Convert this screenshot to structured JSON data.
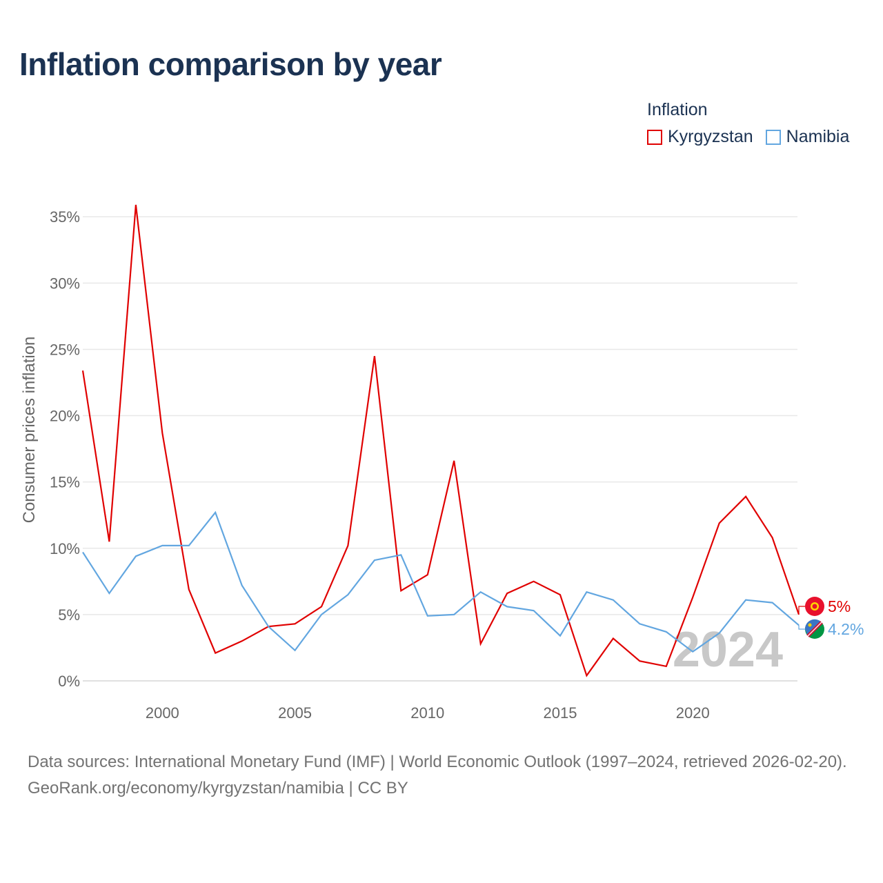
{
  "title": "Inflation comparison by year",
  "legend": {
    "title": "Inflation",
    "items": [
      {
        "name": "Kyrgyzstan",
        "color": "#e00000"
      },
      {
        "name": "Namibia",
        "color": "#62a6e0"
      }
    ]
  },
  "chart_data": {
    "type": "line",
    "title": "Inflation comparison by year",
    "xlabel": "",
    "ylabel": "Consumer prices inflation",
    "x": [
      1997,
      1998,
      1999,
      2000,
      2001,
      2002,
      2003,
      2004,
      2005,
      2006,
      2007,
      2008,
      2009,
      2010,
      2011,
      2012,
      2013,
      2014,
      2015,
      2016,
      2017,
      2018,
      2019,
      2020,
      2021,
      2022,
      2023,
      2024
    ],
    "xlim": [
      1997,
      2024
    ],
    "ylim": [
      0,
      36
    ],
    "xticks": [
      2000,
      2005,
      2010,
      2015,
      2020
    ],
    "yticks": [
      0,
      5,
      10,
      15,
      20,
      25,
      30,
      35
    ],
    "ytick_labels": [
      "0%",
      "5%",
      "10%",
      "15%",
      "20%",
      "25%",
      "30%",
      "35%"
    ],
    "grid": true,
    "legend_position": "top-right",
    "series": [
      {
        "name": "Kyrgyzstan",
        "color": "#e00000",
        "values": [
          23.4,
          10.5,
          35.9,
          18.7,
          6.9,
          2.1,
          3.0,
          4.1,
          4.3,
          5.6,
          10.2,
          24.5,
          6.8,
          8.0,
          16.6,
          2.8,
          6.6,
          7.5,
          6.5,
          0.4,
          3.2,
          1.5,
          1.1,
          6.3,
          11.9,
          13.9,
          10.8,
          5.0
        ],
        "end_label": "5%"
      },
      {
        "name": "Namibia",
        "color": "#62a6e0",
        "values": [
          9.7,
          6.6,
          9.4,
          10.2,
          10.2,
          12.7,
          7.2,
          4.1,
          2.3,
          5.0,
          6.5,
          9.1,
          9.5,
          4.9,
          5.0,
          6.7,
          5.6,
          5.3,
          3.4,
          6.7,
          6.1,
          4.3,
          3.7,
          2.2,
          3.6,
          6.1,
          5.9,
          4.2
        ],
        "end_label": "4.2%"
      }
    ],
    "year_watermark": "2024"
  },
  "footer": {
    "sources": "Data sources: International Monetary Fund (IMF) | World Economic Outlook (1997–2024, retrieved 2026-02-20).",
    "credit": "GeoRank.org/economy/kyrgyzstan/namibia | CC BY"
  }
}
